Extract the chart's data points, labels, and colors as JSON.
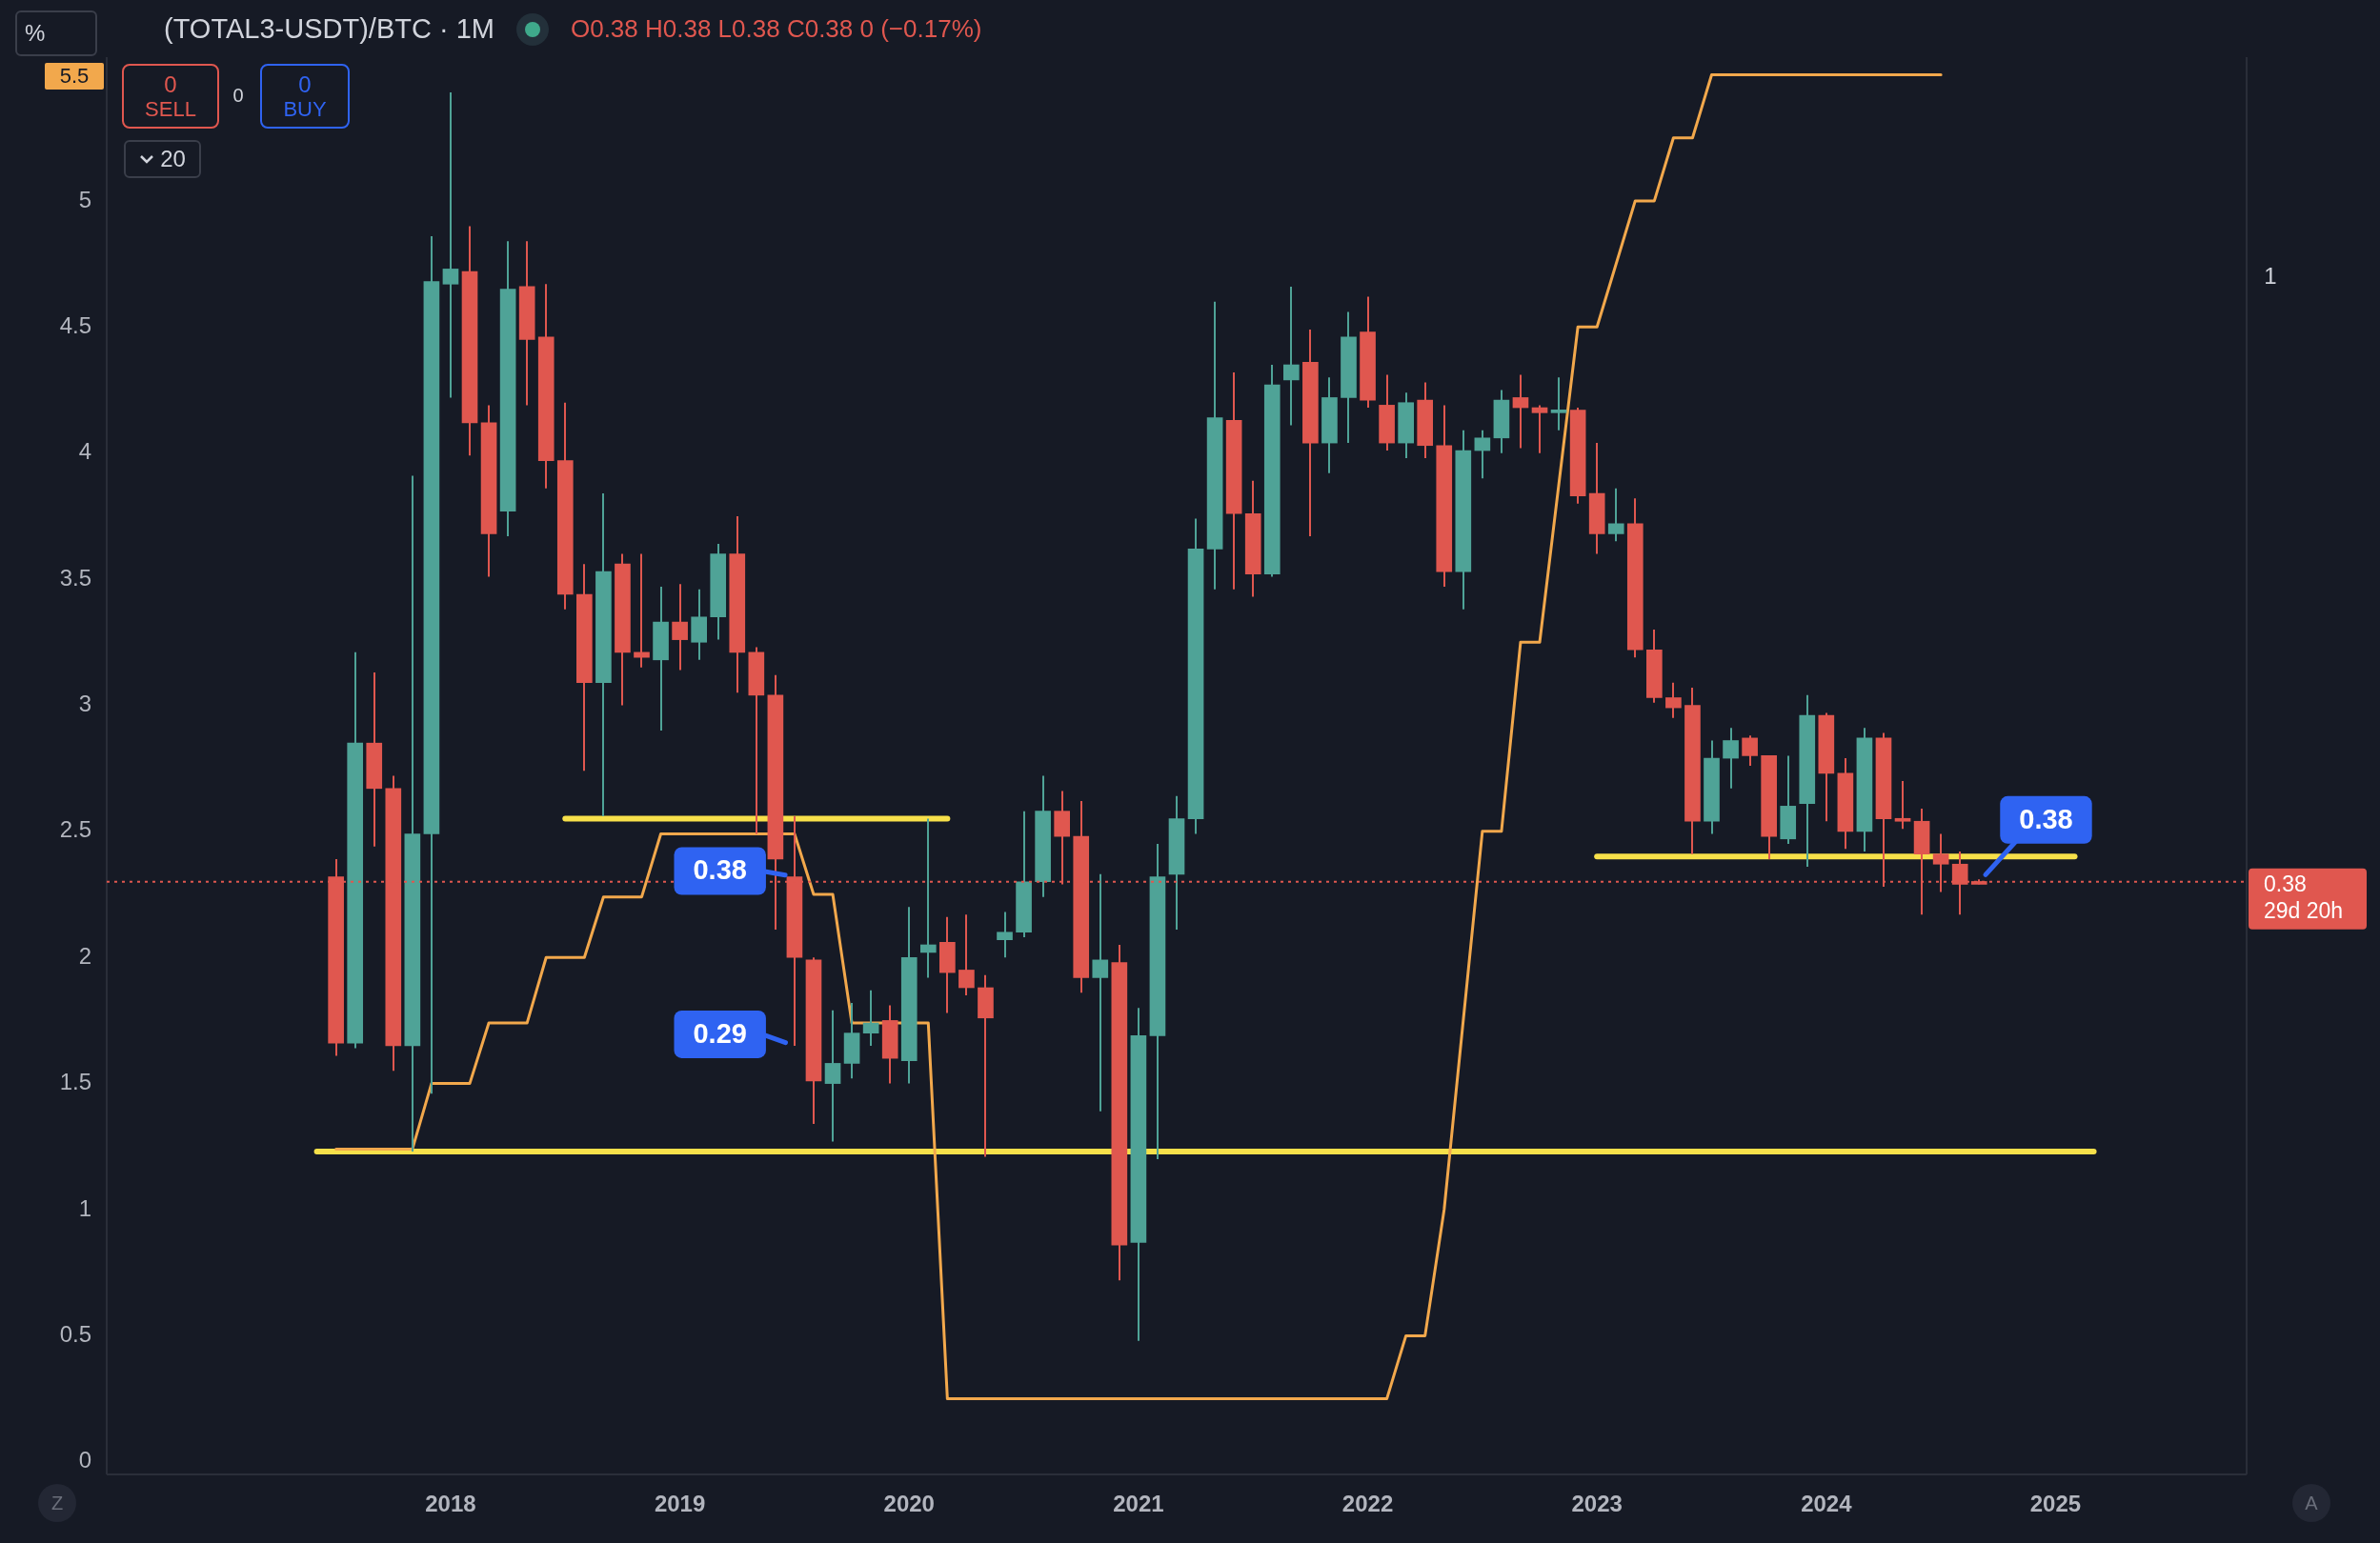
{
  "chart_data": {
    "type": "candlestick",
    "title": "(TOTAL3-USDT)/BTC · 1M",
    "subtitle": "O0.38 H0.38 L0.38 C0.38 0 (−0.17%)",
    "x": [
      "2017-07",
      "2017-08",
      "2017-09",
      "2017-10",
      "2017-11",
      "2017-12",
      "2018-01",
      "2018-02",
      "2018-03",
      "2018-04",
      "2018-05",
      "2018-06",
      "2018-07",
      "2018-08",
      "2018-09",
      "2018-10",
      "2018-11",
      "2018-12",
      "2019-01",
      "2019-02",
      "2019-03",
      "2019-04",
      "2019-05",
      "2019-06",
      "2019-07",
      "2019-08",
      "2019-09",
      "2019-10",
      "2019-11",
      "2019-12",
      "2020-01",
      "2020-02",
      "2020-03",
      "2020-04",
      "2020-05",
      "2020-06",
      "2020-07",
      "2020-08",
      "2020-09",
      "2020-10",
      "2020-11",
      "2020-12",
      "2021-01",
      "2021-02",
      "2021-03",
      "2021-04",
      "2021-05",
      "2021-06",
      "2021-07",
      "2021-08",
      "2021-09",
      "2021-10",
      "2021-11",
      "2021-12",
      "2022-01",
      "2022-02",
      "2022-03",
      "2022-04",
      "2022-05",
      "2022-06",
      "2022-07",
      "2022-08",
      "2022-09",
      "2022-10",
      "2022-11",
      "2022-12",
      "2023-01",
      "2023-02",
      "2023-03",
      "2023-04",
      "2023-05",
      "2023-06",
      "2023-07",
      "2023-08",
      "2023-09",
      "2023-10",
      "2023-11",
      "2023-12",
      "2024-01",
      "2024-02",
      "2024-03",
      "2024-04",
      "2024-05",
      "2024-06",
      "2024-07",
      "2024-08",
      "2024-09"
    ],
    "ohlc": [
      [
        2.32,
        2.39,
        1.61,
        1.66
      ],
      [
        1.66,
        3.21,
        1.64,
        2.85
      ],
      [
        2.85,
        3.13,
        2.44,
        2.67
      ],
      [
        2.67,
        2.72,
        1.55,
        1.65
      ],
      [
        1.65,
        3.91,
        1.23,
        2.49
      ],
      [
        2.49,
        4.86,
        1.46,
        4.68
      ],
      [
        4.67,
        5.43,
        4.22,
        4.73
      ],
      [
        4.72,
        4.9,
        3.99,
        4.12
      ],
      [
        4.12,
        4.19,
        3.51,
        3.68
      ],
      [
        3.77,
        4.84,
        3.67,
        4.65
      ],
      [
        4.66,
        4.84,
        4.19,
        4.45
      ],
      [
        4.46,
        4.67,
        3.86,
        3.97
      ],
      [
        3.97,
        4.2,
        3.38,
        3.44
      ],
      [
        3.44,
        3.56,
        2.74,
        3.09
      ],
      [
        3.09,
        3.84,
        2.56,
        3.53
      ],
      [
        3.56,
        3.6,
        3.0,
        3.21
      ],
      [
        3.21,
        3.6,
        3.15,
        3.19
      ],
      [
        3.18,
        3.47,
        2.9,
        3.33
      ],
      [
        3.33,
        3.48,
        3.14,
        3.26
      ],
      [
        3.25,
        3.46,
        3.18,
        3.35
      ],
      [
        3.35,
        3.64,
        3.26,
        3.6
      ],
      [
        3.6,
        3.75,
        3.05,
        3.21
      ],
      [
        3.21,
        3.23,
        2.49,
        3.04
      ],
      [
        3.04,
        3.12,
        2.11,
        2.39
      ],
      [
        2.32,
        2.56,
        1.65,
        2.0
      ],
      [
        1.99,
        2.0,
        1.34,
        1.51
      ],
      [
        1.5,
        1.79,
        1.27,
        1.58
      ],
      [
        1.58,
        1.82,
        1.52,
        1.7
      ],
      [
        1.7,
        1.87,
        1.65,
        1.74
      ],
      [
        1.75,
        1.81,
        1.5,
        1.6
      ],
      [
        1.59,
        2.2,
        1.5,
        2.0
      ],
      [
        2.02,
        2.55,
        1.92,
        2.05
      ],
      [
        2.06,
        2.16,
        1.78,
        1.94
      ],
      [
        1.95,
        2.17,
        1.85,
        1.88
      ],
      [
        1.88,
        1.93,
        1.21,
        1.76
      ],
      [
        2.07,
        2.18,
        2.0,
        2.1
      ],
      [
        2.1,
        2.58,
        2.08,
        2.3
      ],
      [
        2.3,
        2.72,
        2.24,
        2.58
      ],
      [
        2.58,
        2.66,
        2.29,
        2.48
      ],
      [
        2.48,
        2.62,
        1.86,
        1.92
      ],
      [
        1.92,
        2.33,
        1.39,
        1.99
      ],
      [
        1.98,
        2.05,
        0.72,
        0.86
      ],
      [
        0.87,
        1.8,
        0.48,
        1.69
      ],
      [
        1.69,
        2.45,
        1.2,
        2.32
      ],
      [
        2.33,
        2.64,
        2.11,
        2.55
      ],
      [
        2.55,
        3.74,
        2.49,
        3.62
      ],
      [
        3.62,
        4.6,
        3.46,
        4.14
      ],
      [
        4.13,
        4.32,
        3.46,
        3.76
      ],
      [
        3.76,
        3.89,
        3.43,
        3.52
      ],
      [
        3.52,
        4.35,
        3.51,
        4.27
      ],
      [
        4.29,
        4.66,
        4.11,
        4.35
      ],
      [
        4.36,
        4.49,
        3.67,
        4.04
      ],
      [
        4.04,
        4.3,
        3.92,
        4.22
      ],
      [
        4.22,
        4.56,
        4.04,
        4.46
      ],
      [
        4.48,
        4.62,
        4.18,
        4.21
      ],
      [
        4.19,
        4.31,
        4.01,
        4.04
      ],
      [
        4.04,
        4.24,
        3.98,
        4.2
      ],
      [
        4.21,
        4.28,
        3.98,
        4.03
      ],
      [
        4.03,
        4.19,
        3.47,
        3.53
      ],
      [
        3.53,
        4.09,
        3.38,
        4.01
      ],
      [
        4.01,
        4.09,
        3.9,
        4.06
      ],
      [
        4.06,
        4.25,
        4.0,
        4.21
      ],
      [
        4.22,
        4.31,
        4.02,
        4.18
      ],
      [
        4.18,
        4.19,
        4.0,
        4.16
      ],
      [
        4.16,
        4.3,
        4.09,
        4.17
      ],
      [
        4.17,
        4.18,
        3.8,
        3.83
      ],
      [
        3.84,
        4.04,
        3.6,
        3.68
      ],
      [
        3.68,
        3.86,
        3.65,
        3.72
      ],
      [
        3.72,
        3.82,
        3.19,
        3.22
      ],
      [
        3.22,
        3.3,
        3.01,
        3.03
      ],
      [
        3.03,
        3.09,
        2.95,
        2.99
      ],
      [
        3.0,
        3.07,
        2.41,
        2.54
      ],
      [
        2.54,
        2.86,
        2.49,
        2.79
      ],
      [
        2.79,
        2.91,
        2.67,
        2.86
      ],
      [
        2.87,
        2.88,
        2.76,
        2.8
      ],
      [
        2.8,
        2.8,
        2.39,
        2.48
      ],
      [
        2.47,
        2.8,
        2.45,
        2.6
      ],
      [
        2.61,
        3.04,
        2.36,
        2.96
      ],
      [
        2.96,
        2.97,
        2.54,
        2.73
      ],
      [
        2.73,
        2.79,
        2.43,
        2.5
      ],
      [
        2.5,
        2.91,
        2.42,
        2.87
      ],
      [
        2.87,
        2.89,
        2.28,
        2.55
      ],
      [
        2.55,
        2.7,
        2.51,
        2.54
      ],
      [
        2.54,
        2.59,
        2.17,
        2.41
      ],
      [
        2.41,
        2.49,
        2.26,
        2.37
      ],
      [
        2.37,
        2.42,
        2.17,
        2.29
      ],
      [
        2.3,
        2.31,
        2.29,
        2.29
      ]
    ],
    "colors": [
      "#e0574f",
      "#4fa397",
      "#e0574f",
      "#e0574f",
      "#4fa397",
      "#4fa397",
      "#4fa397",
      "#e0574f",
      "#e0574f",
      "#4fa397",
      "#e0574f",
      "#e0574f",
      "#e0574f",
      "#e0574f",
      "#4fa397",
      "#e0574f",
      "#e0574f",
      "#4fa397",
      "#e0574f",
      "#4fa397",
      "#4fa397",
      "#e0574f",
      "#e0574f",
      "#e0574f",
      "#e0574f",
      "#e0574f",
      "#4fa397",
      "#4fa397",
      "#4fa397",
      "#e0574f",
      "#4fa397",
      "#4fa397",
      "#e0574f",
      "#e0574f",
      "#e0574f",
      "#4fa397",
      "#4fa397",
      "#4fa397",
      "#e0574f",
      "#e0574f",
      "#4fa397",
      "#e0574f",
      "#4fa397",
      "#4fa397",
      "#4fa397",
      "#4fa397",
      "#4fa397",
      "#e0574f",
      "#e0574f",
      "#4fa397",
      "#4fa397",
      "#e0574f",
      "#4fa397",
      "#4fa397",
      "#e0574f",
      "#e0574f",
      "#4fa397",
      "#e0574f",
      "#e0574f",
      "#4fa397",
      "#4fa397",
      "#4fa397",
      "#e0574f",
      "#e0574f",
      "#4fa397",
      "#e0574f",
      "#e0574f",
      "#4fa397",
      "#e0574f",
      "#e0574f",
      "#e0574f",
      "#e0574f",
      "#4fa397",
      "#4fa397",
      "#e0574f",
      "#e0574f",
      "#4fa397",
      "#4fa397",
      "#e0574f",
      "#e0574f",
      "#4fa397",
      "#e0574f",
      "#e0574f",
      "#e0574f",
      "#e0574f",
      "#e0574f",
      "#e0574f"
    ],
    "series": [
      {
        "type": "line",
        "color": "#f2a84c",
        "x": [
          "2017-07",
          "2017-11",
          "2017-12",
          "2018-02",
          "2018-03",
          "2018-05",
          "2018-06",
          "2018-08",
          "2018-09",
          "2018-11",
          "2018-12",
          "2019-07",
          "2019-08",
          "2019-09",
          "2019-10",
          "2020-02",
          "2020-03",
          "2022-02",
          "2022-03",
          "2022-04",
          "2022-05",
          "2022-07",
          "2022-08",
          "2022-09",
          "2022-10",
          "2022-12",
          "2023-01",
          "2023-03",
          "2023-04",
          "2023-05",
          "2023-06",
          "2023-07",
          "2024-07"
        ],
        "values": [
          1.24,
          1.24,
          1.5,
          1.5,
          1.74,
          1.74,
          2.0,
          2.0,
          2.24,
          2.24,
          2.49,
          2.49,
          2.25,
          2.25,
          1.74,
          1.74,
          0.25,
          0.25,
          0.5,
          0.5,
          1.0,
          2.5,
          2.5,
          3.25,
          3.25,
          4.5,
          4.5,
          5.0,
          5.0,
          5.25,
          5.25,
          5.5,
          5.5
        ]
      },
      {
        "type": "line",
        "color": "#f7e04a",
        "x": [
          "2018-07",
          "2020-03"
        ],
        "values": [
          2.55,
          2.55
        ]
      },
      {
        "type": "line",
        "color": "#f7e04a",
        "x": [
          "2017-06",
          "2025-03"
        ],
        "values": [
          1.23,
          1.23
        ]
      },
      {
        "type": "line",
        "color": "#f7e04a",
        "x": [
          "2023-01",
          "2025-02"
        ],
        "values": [
          2.4,
          2.4
        ]
      }
    ],
    "xlim": [
      "2016-07",
      "2025-11"
    ],
    "xticks": [
      "2018",
      "2019",
      "2020",
      "2021",
      "2022",
      "2023",
      "2024",
      "2025"
    ],
    "ylim": [
      -0.05,
      5.57
    ],
    "yticks": [
      0,
      0.5,
      1,
      1.5,
      2,
      2.5,
      3,
      3.5,
      4,
      4.5,
      5
    ],
    "ref_lines": [
      {
        "axis": "y",
        "value": 2.3,
        "label": "0.38\n29d 20h",
        "color": "#e0574f",
        "line_style": "dotted"
      }
    ],
    "annotations": [
      "%",
      "0",
      "SELL",
      "0",
      "0",
      "BUY",
      "20",
      "5.5",
      "1",
      "Z",
      "A",
      {
        "text": "0.38",
        "x": "2019-07",
        "y": 2.32
      },
      {
        "text": "0.29",
        "x": "2019-07",
        "y": 1.65
      },
      {
        "text": "0.38",
        "x": "2024-09",
        "y": 2.3
      }
    ]
  }
}
